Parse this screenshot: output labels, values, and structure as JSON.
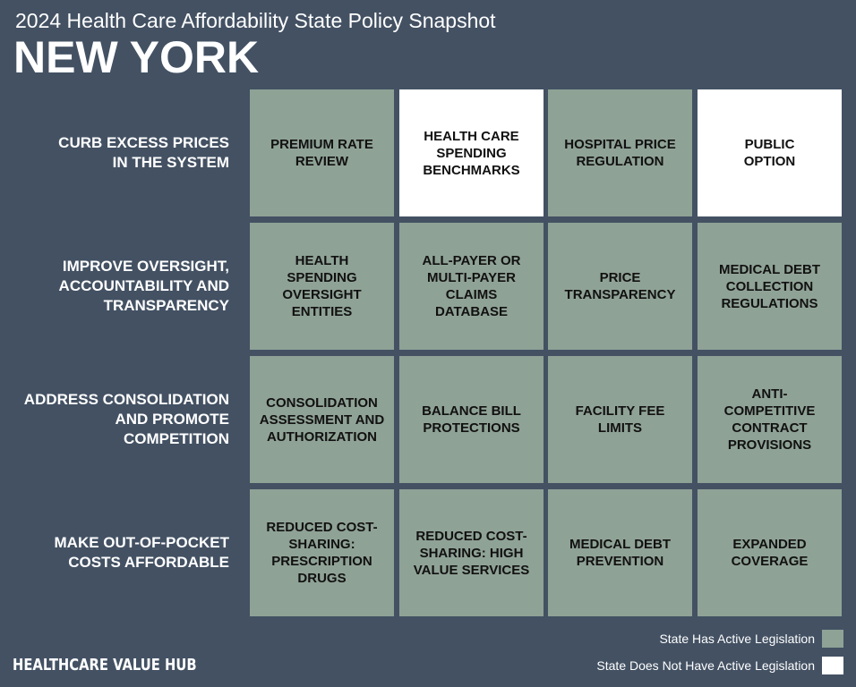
{
  "header": {
    "subtitle": "2024 Health Care Affordability State Policy Snapshot",
    "title": "NEW YORK"
  },
  "colors": {
    "background": "#435163",
    "active": "#8fa296",
    "inactive": "#ffffff"
  },
  "rows": [
    {
      "label": "CURB EXCESS PRICES IN THE SYSTEM",
      "cells": [
        {
          "label": "PREMIUM RATE REVIEW",
          "active": true
        },
        {
          "label": "HEALTH CARE SPENDING BENCHMARKS",
          "active": false
        },
        {
          "label": "HOSPITAL PRICE REGULATION",
          "active": true
        },
        {
          "label": "PUBLIC OPTION",
          "active": false
        }
      ]
    },
    {
      "label": "IMPROVE OVERSIGHT, ACCOUNTABILITY AND TRANSPARENCY",
      "cells": [
        {
          "label": "HEALTH SPENDING OVERSIGHT ENTITIES",
          "active": true
        },
        {
          "label": "ALL-PAYER OR MULTI-PAYER CLAIMS DATABASE",
          "active": true
        },
        {
          "label": "PRICE TRANSPARENCY",
          "active": true
        },
        {
          "label": "MEDICAL DEBT COLLECTION REGULATIONS",
          "active": true
        }
      ]
    },
    {
      "label": "ADDRESS CONSOLIDATION AND PROMOTE COMPETITION",
      "cells": [
        {
          "label": "CONSOLIDATION ASSESSMENT AND AUTHORIZATION",
          "active": true
        },
        {
          "label": "BALANCE BILL PROTECTIONS",
          "active": true
        },
        {
          "label": "FACILITY FEE LIMITS",
          "active": true
        },
        {
          "label": "ANTI-COMPETITIVE CONTRACT PROVISIONS",
          "active": true
        }
      ]
    },
    {
      "label": "MAKE OUT-OF-POCKET COSTS AFFORDABLE",
      "cells": [
        {
          "label": "REDUCED COST-SHARING: PRESCRIPTION DRUGS",
          "active": true
        },
        {
          "label": "REDUCED COST-SHARING: HIGH VALUE SERVICES",
          "active": true
        },
        {
          "label": "MEDICAL DEBT PREVENTION",
          "active": true
        },
        {
          "label": "EXPANDED COVERAGE",
          "active": true
        }
      ]
    }
  ],
  "legend": {
    "active_label": "State Has Active Legislation",
    "inactive_label": "State Does Not Have Active Legislation"
  },
  "footer": {
    "logo_text": "HEALTHCARE VALUE HUB"
  }
}
